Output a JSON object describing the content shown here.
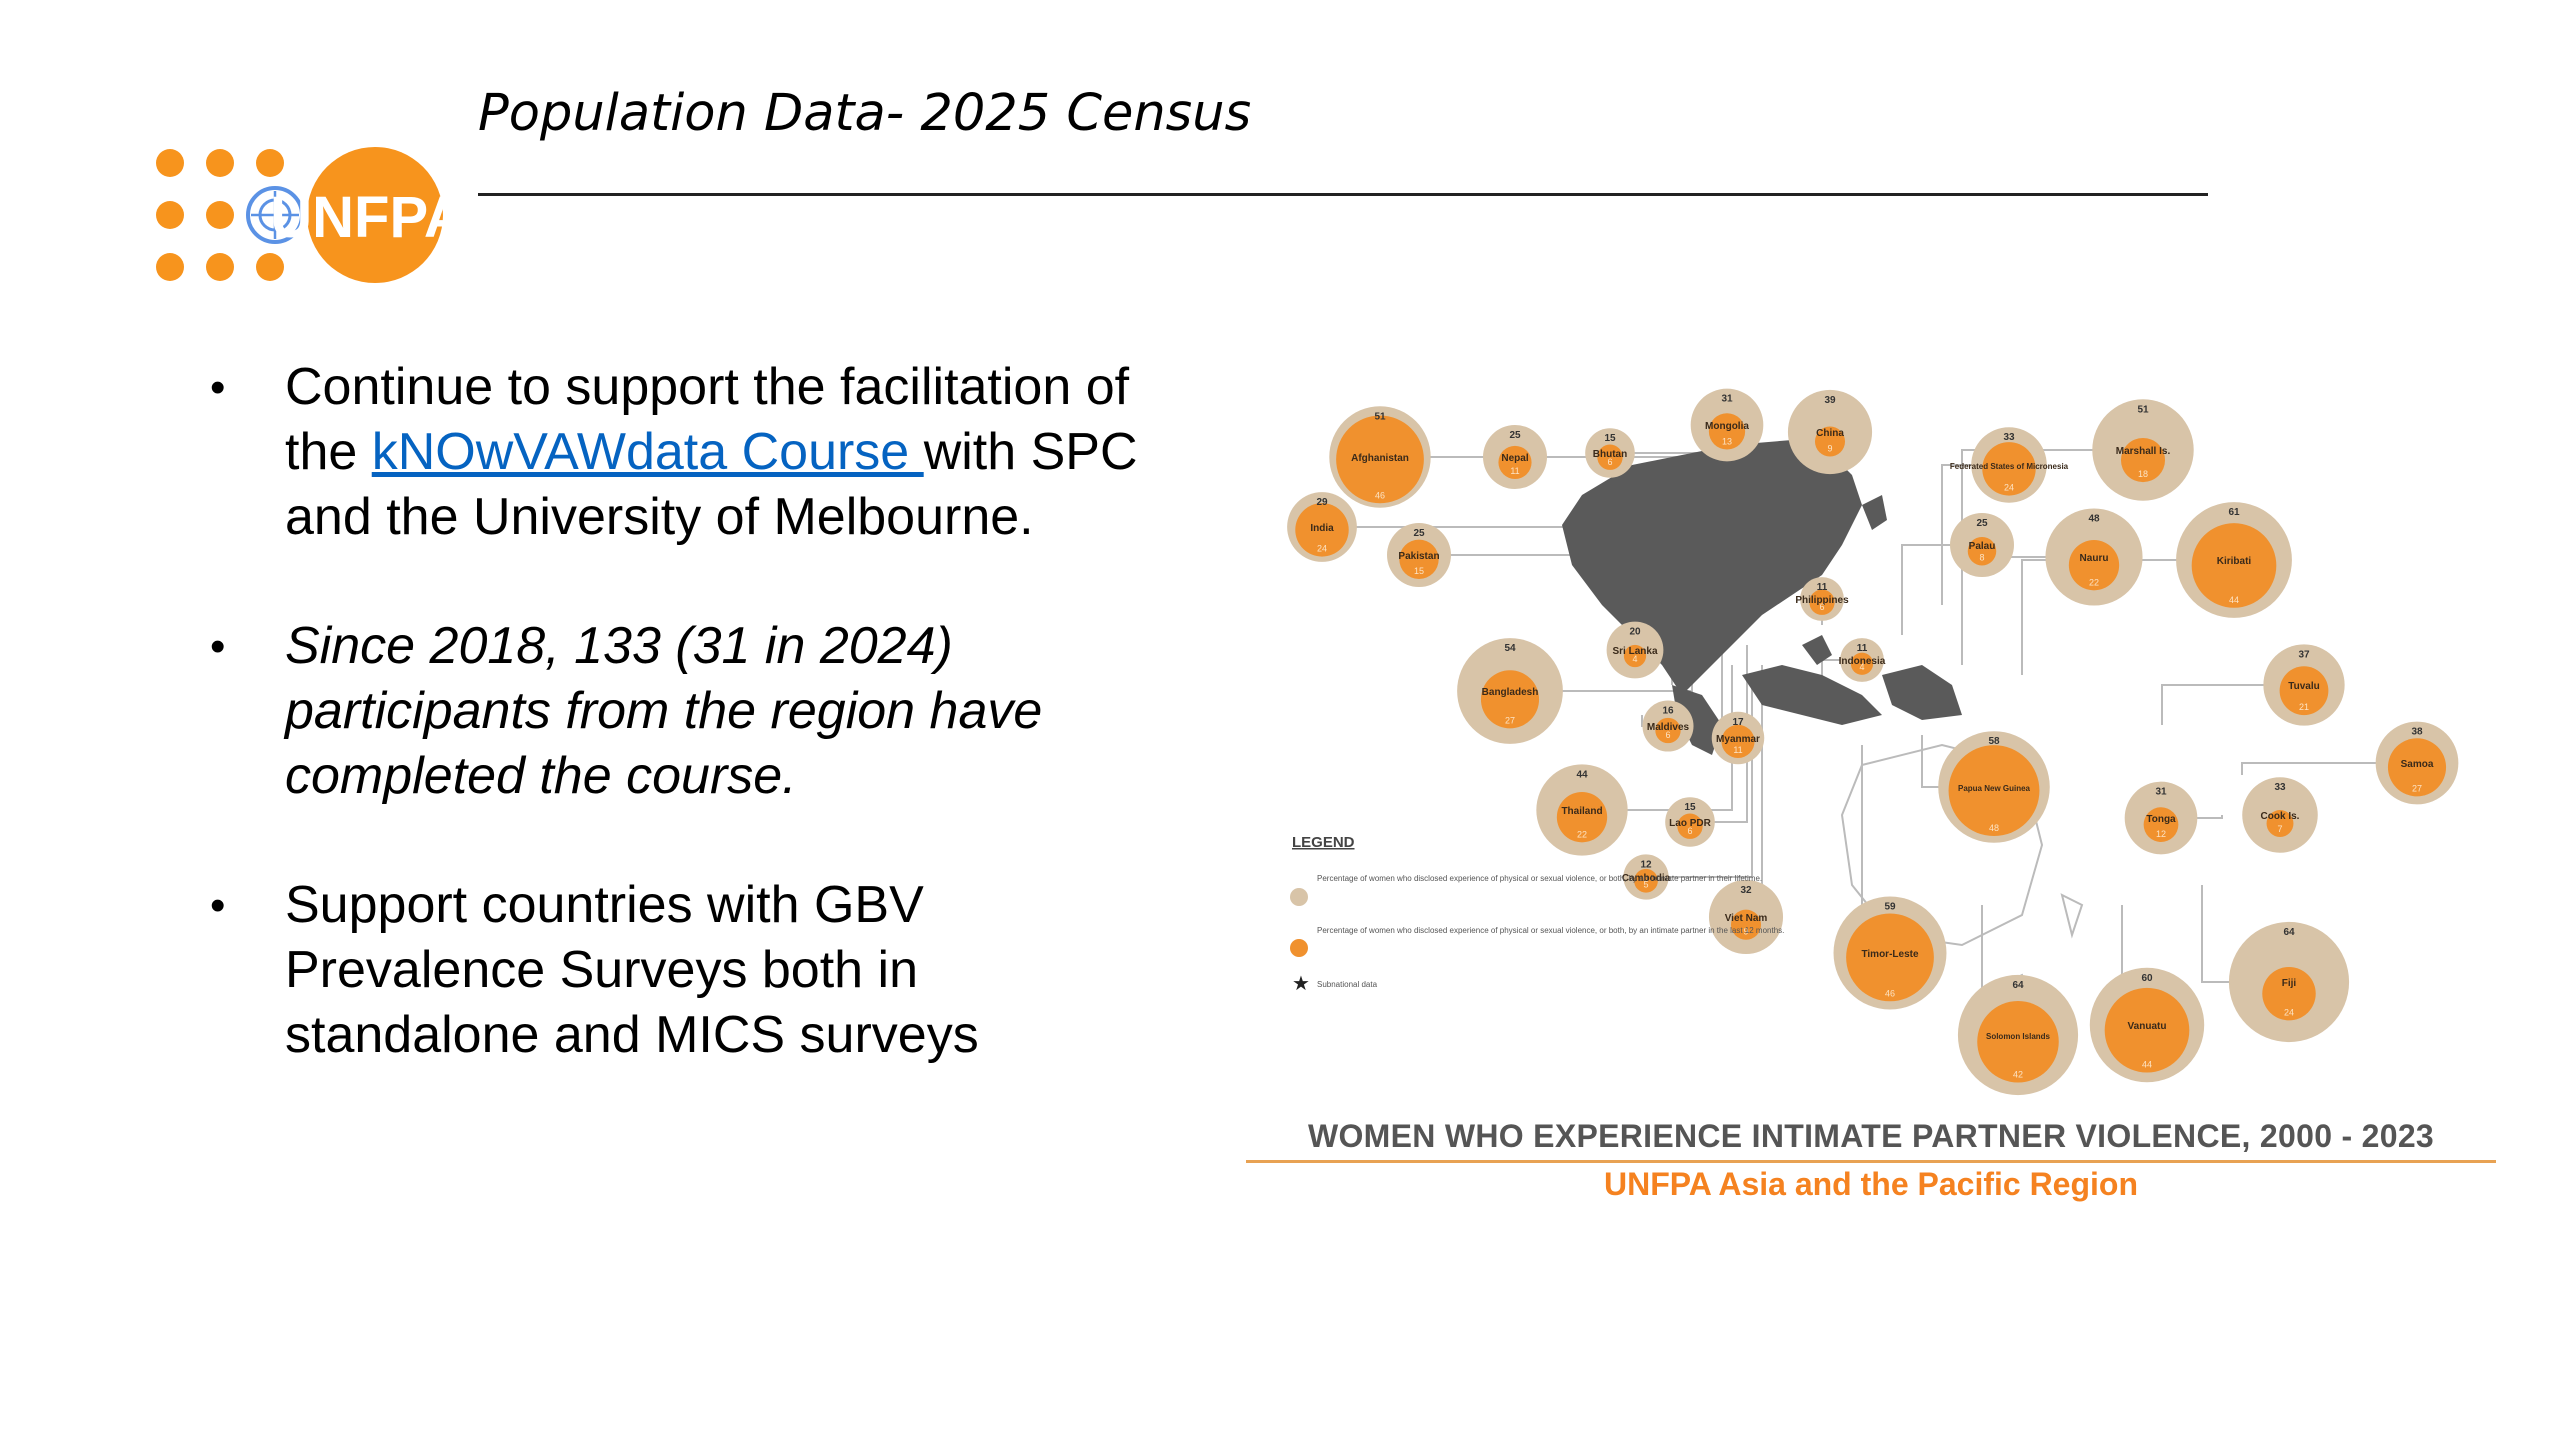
{
  "header": {
    "title": "Population Data- 2025 Census",
    "logo_text": "UNFPA"
  },
  "bullets": [
    {
      "text_before": "Continue to support the facilitation of the ",
      "link_text": "kNOwVAWdata Course ",
      "text_after": "with SPC and the University of Melbourne."
    },
    {
      "text": "Since 2018, 133 (31 in 2024) participants from the region have completed the course."
    },
    {
      "text": "Support countries with GBV Prevalence Surveys both in standalone and MICS surveys"
    }
  ],
  "infographic": {
    "caption_title": "WOMEN WHO EXPERIENCE INTIMATE PARTNER VIOLENCE, 2000 - 2023",
    "caption_subtitle": "UNFPA Asia and the Pacific Region",
    "legend": {
      "title": "LEGEND",
      "lifetime": "Percentage of women who disclosed experience of physical or sexual violence, or both, by an intimate partner in their lifetime.",
      "last12": "Percentage of women who disclosed experience of physical or sexual violence, or both, by an intimate partner in the last 12 months.",
      "subnational": "Subnational data"
    },
    "countries": [
      {
        "name": "Afghanistan",
        "lifetime": "51",
        "last12": "46"
      },
      {
        "name": "Nepal",
        "lifetime": "25",
        "last12": "11"
      },
      {
        "name": "Bhutan",
        "lifetime": "15",
        "last12": "6"
      },
      {
        "name": "Mongolia",
        "lifetime": "31",
        "last12": "13"
      },
      {
        "name": "China",
        "lifetime": "39",
        "last12": "9"
      },
      {
        "name": "Federated States of Micronesia",
        "lifetime": "33",
        "last12": "24"
      },
      {
        "name": "Marshall Is.",
        "lifetime": "51",
        "last12": "18"
      },
      {
        "name": "India",
        "lifetime": "29",
        "last12": "24"
      },
      {
        "name": "Pakistan",
        "lifetime": "25",
        "last12": "15"
      },
      {
        "name": "Palau",
        "lifetime": "25",
        "last12": "8"
      },
      {
        "name": "Nauru",
        "lifetime": "48",
        "last12": "22"
      },
      {
        "name": "Kiribati",
        "lifetime": "61",
        "last12": "44"
      },
      {
        "name": "Bangladesh",
        "lifetime": "54",
        "last12": "27"
      },
      {
        "name": "Sri Lanka",
        "lifetime": "20",
        "last12": "4"
      },
      {
        "name": "Philippines",
        "lifetime": "11",
        "last12": "6"
      },
      {
        "name": "Indonesia",
        "lifetime": "11",
        "last12": "4"
      },
      {
        "name": "Tuvalu",
        "lifetime": "37",
        "last12": "21"
      },
      {
        "name": "Maldives",
        "lifetime": "16",
        "last12": "6"
      },
      {
        "name": "Myanmar",
        "lifetime": "17",
        "last12": "11"
      },
      {
        "name": "Samoa",
        "lifetime": "38",
        "last12": "27"
      },
      {
        "name": "Thailand",
        "lifetime": "44",
        "last12": "22"
      },
      {
        "name": "Lao PDR",
        "lifetime": "15",
        "last12": "6"
      },
      {
        "name": "Papua New Guinea",
        "lifetime": "58",
        "last12": "48"
      },
      {
        "name": "Tonga",
        "lifetime": "31",
        "last12": "12"
      },
      {
        "name": "Cook Is.",
        "lifetime": "33",
        "last12": "7"
      },
      {
        "name": "Cambodia",
        "lifetime": "12",
        "last12": "5"
      },
      {
        "name": "Viet Nam",
        "lifetime": "32",
        "last12": "9"
      },
      {
        "name": "Timor-Leste",
        "lifetime": "59",
        "last12": "46"
      },
      {
        "name": "Solomon Islands",
        "lifetime": "64",
        "last12": "42"
      },
      {
        "name": "Vanuatu",
        "lifetime": "60",
        "last12": "44"
      },
      {
        "name": "Fiji",
        "lifetime": "64",
        "last12": "24"
      }
    ]
  },
  "colors": {
    "lifetime_circle": "#d8c4a8",
    "last12_circle": "#f0912e",
    "unfpa_orange": "#f7941d",
    "map_land": "#5a5a5a",
    "link": "#0563c1"
  }
}
